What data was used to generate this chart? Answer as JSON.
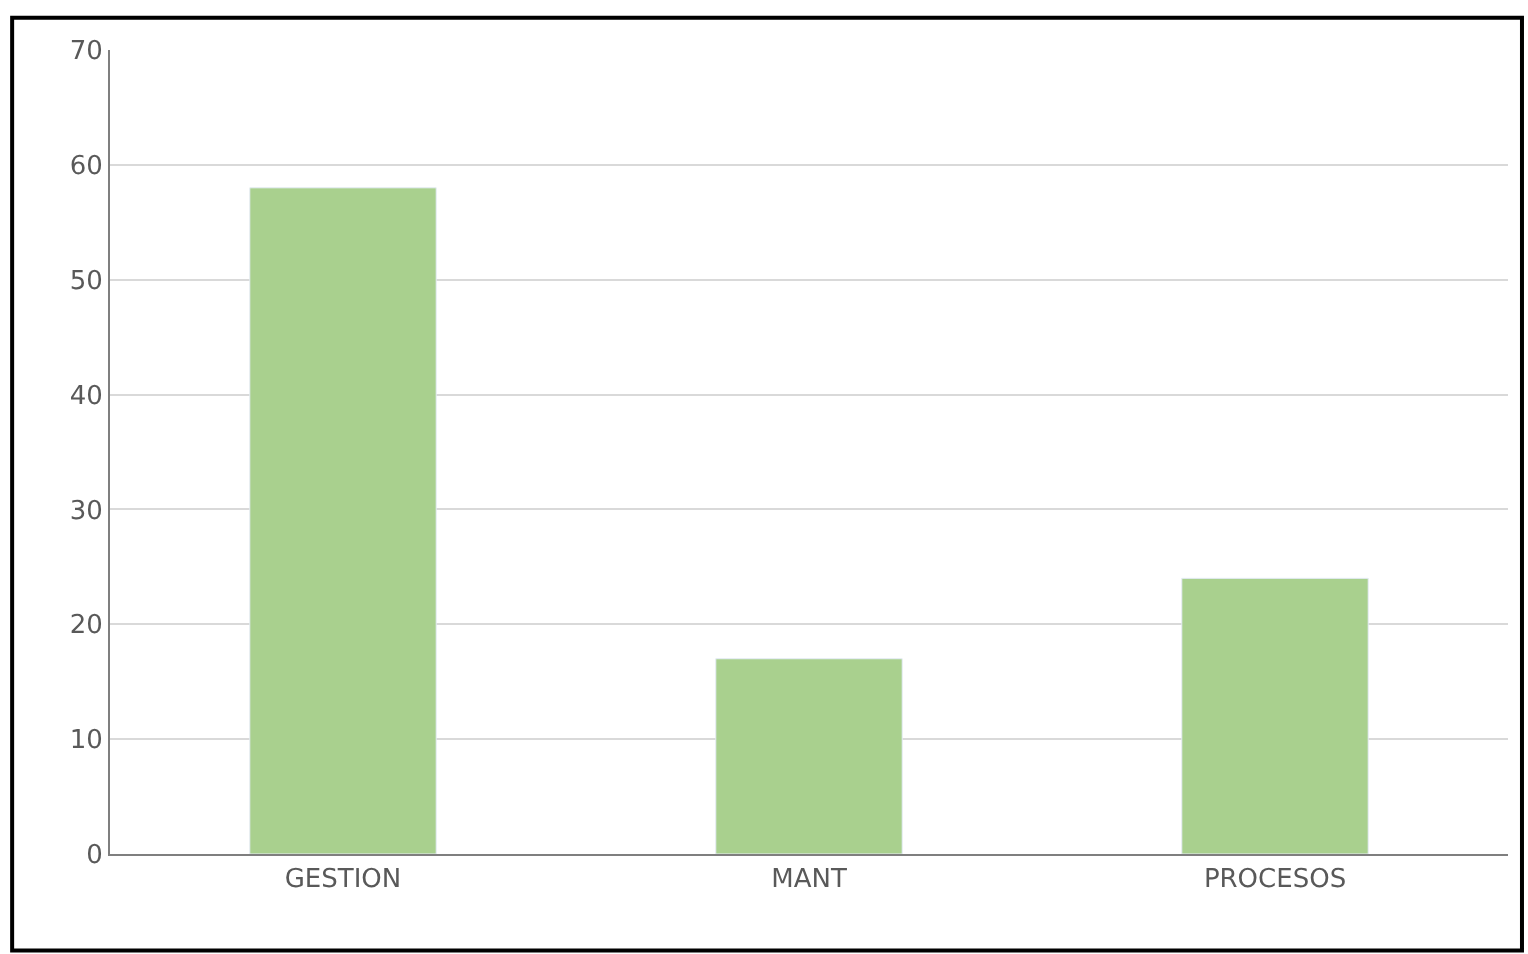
{
  "chart_data": {
    "type": "bar",
    "categories": [
      "GESTION",
      "MANT",
      "PROCESOS"
    ],
    "values": [
      58,
      17,
      24
    ],
    "color": "#a9d08e",
    "ylim": [
      0,
      70
    ],
    "yticks": [
      0,
      10,
      20,
      30,
      40,
      50,
      60,
      70
    ],
    "grid": "y",
    "legend": false
  }
}
